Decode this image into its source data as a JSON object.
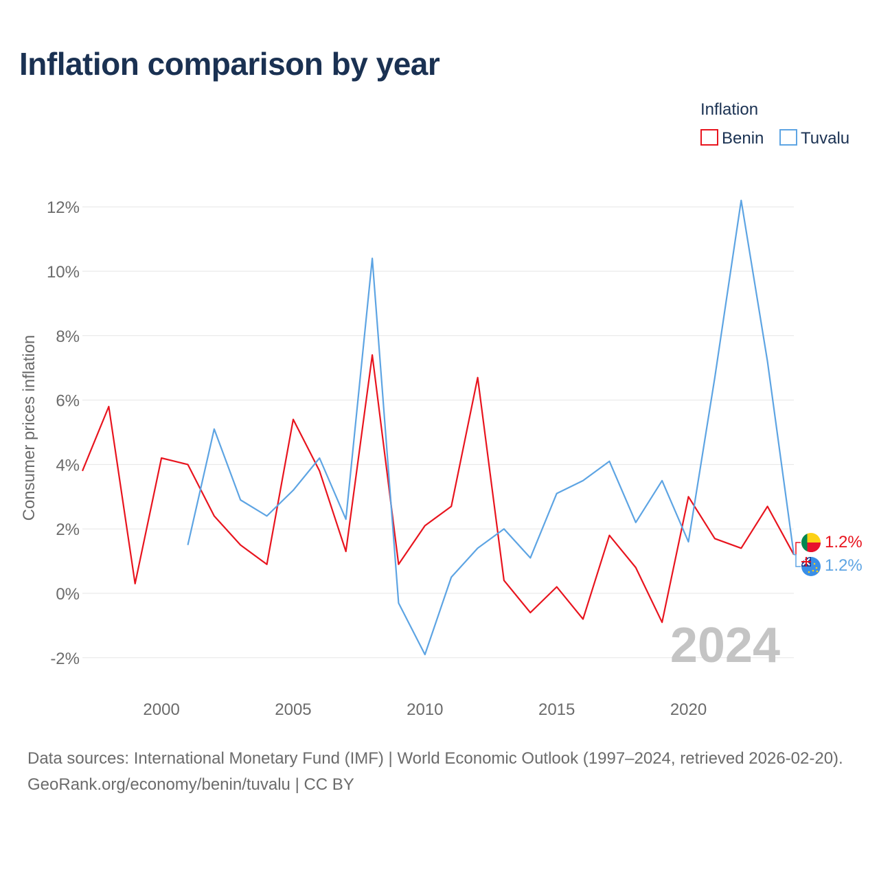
{
  "title": "Inflation comparison by year",
  "legend": {
    "title": "Inflation",
    "items": [
      {
        "name": "Benin",
        "color": "#e8141e"
      },
      {
        "name": "Tuvalu",
        "color": "#5da4e3"
      }
    ]
  },
  "watermark_year": "2024",
  "footer": {
    "sources": "Data sources: International Monetary Fund (IMF) | World Economic Outlook (1997–2024, retrieved 2026-02-20).",
    "credit": "GeoRank.org/economy/benin/tuvalu | CC BY"
  },
  "chart_data": {
    "type": "line",
    "title": "Inflation comparison by year",
    "xlabel": "",
    "ylabel": "Consumer prices inflation",
    "xlim": [
      1997,
      2024
    ],
    "ylim": [
      -3,
      13
    ],
    "yticks": [
      -2,
      0,
      2,
      4,
      6,
      8,
      10,
      12
    ],
    "ytick_labels": [
      "-2%",
      "0%",
      "2%",
      "4%",
      "6%",
      "8%",
      "10%",
      "12%"
    ],
    "xticks": [
      2000,
      2005,
      2010,
      2015,
      2020
    ],
    "xtick_labels": [
      "2000",
      "2005",
      "2010",
      "2015",
      "2020"
    ],
    "grid": true,
    "legend_position": "top-right",
    "series": [
      {
        "name": "Benin",
        "color": "#e8141e",
        "end_label": "1.2%",
        "points": [
          [
            1997,
            3.8
          ],
          [
            1998,
            5.8
          ],
          [
            1999,
            0.3
          ],
          [
            2000,
            4.2
          ],
          [
            2001,
            4.0
          ],
          [
            2002,
            2.4
          ],
          [
            2003,
            1.5
          ],
          [
            2004,
            0.9
          ],
          [
            2005,
            5.4
          ],
          [
            2006,
            3.8
          ],
          [
            2007,
            1.3
          ],
          [
            2008,
            7.4
          ],
          [
            2009,
            0.9
          ],
          [
            2010,
            2.1
          ],
          [
            2011,
            2.7
          ],
          [
            2012,
            6.7
          ],
          [
            2013,
            0.4
          ],
          [
            2014,
            -0.6
          ],
          [
            2015,
            0.2
          ],
          [
            2016,
            -0.8
          ],
          [
            2017,
            1.8
          ],
          [
            2018,
            0.8
          ],
          [
            2019,
            -0.9
          ],
          [
            2020,
            3.0
          ],
          [
            2021,
            1.7
          ],
          [
            2022,
            1.4
          ],
          [
            2023,
            2.7
          ],
          [
            2024,
            1.2
          ]
        ]
      },
      {
        "name": "Tuvalu",
        "color": "#5da4e3",
        "end_label": "1.2%",
        "points": [
          [
            2001,
            1.5
          ],
          [
            2002,
            5.1
          ],
          [
            2003,
            2.9
          ],
          [
            2004,
            2.4
          ],
          [
            2005,
            3.2
          ],
          [
            2006,
            4.2
          ],
          [
            2007,
            2.3
          ],
          [
            2008,
            10.4
          ],
          [
            2009,
            -0.3
          ],
          [
            2010,
            -1.9
          ],
          [
            2011,
            0.5
          ],
          [
            2012,
            1.4
          ],
          [
            2013,
            2.0
          ],
          [
            2014,
            1.1
          ],
          [
            2015,
            3.1
          ],
          [
            2016,
            3.5
          ],
          [
            2017,
            4.1
          ],
          [
            2018,
            2.2
          ],
          [
            2019,
            3.5
          ],
          [
            2020,
            1.6
          ],
          [
            2021,
            6.7
          ],
          [
            2022,
            12.2
          ],
          [
            2023,
            7.2
          ],
          [
            2024,
            1.2
          ]
        ]
      }
    ]
  }
}
